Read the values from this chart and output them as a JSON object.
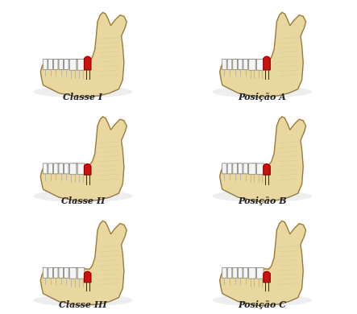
{
  "background_color": "#ffffff",
  "labels": [
    "Classe I",
    "Classe II",
    "Classe III",
    "Posição A",
    "Posição B",
    "Posição C"
  ],
  "label_fontsize": 8,
  "bone_color": "#e8d8a0",
  "bone_edge_color": "#9a7a3a",
  "tooth_color": "#f5f5f5",
  "tooth_edge_color": "#888888",
  "highlight_color": "#cc1111",
  "highlight_edge_color": "#880000",
  "shadow_alpha": 0.3
}
